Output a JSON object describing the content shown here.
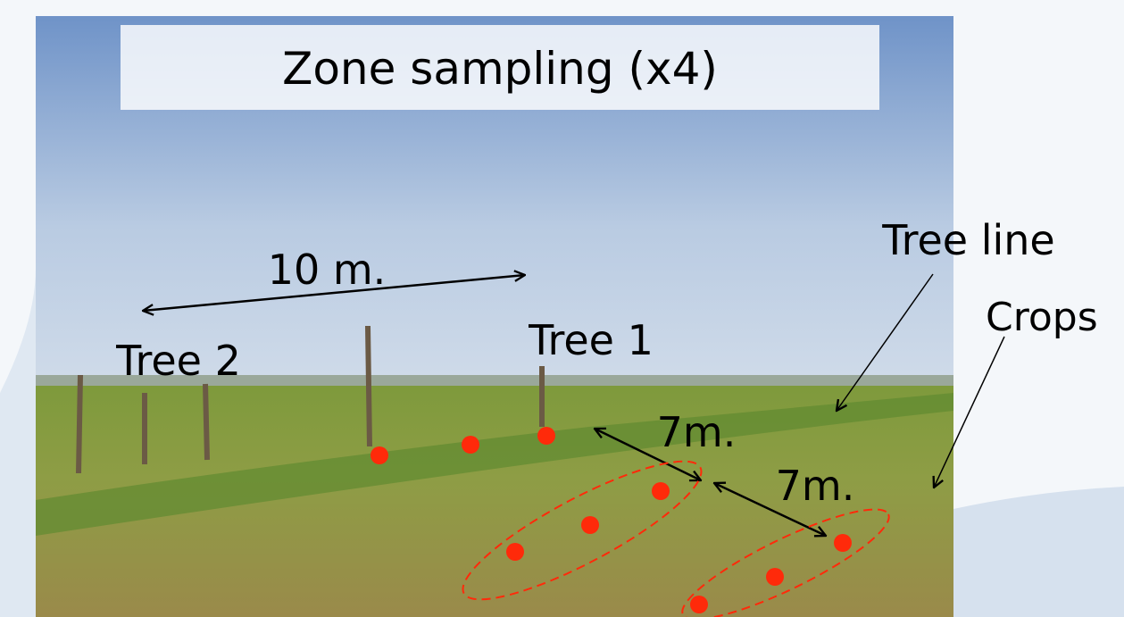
{
  "title": "Zone sampling (x4)",
  "labels": {
    "distance": "10 m.",
    "tree2": "Tree 2",
    "tree1": "Tree 1",
    "tree_line": "Tree line",
    "crops": "Crops",
    "gap1": "7m.",
    "gap2": "7m."
  }
}
